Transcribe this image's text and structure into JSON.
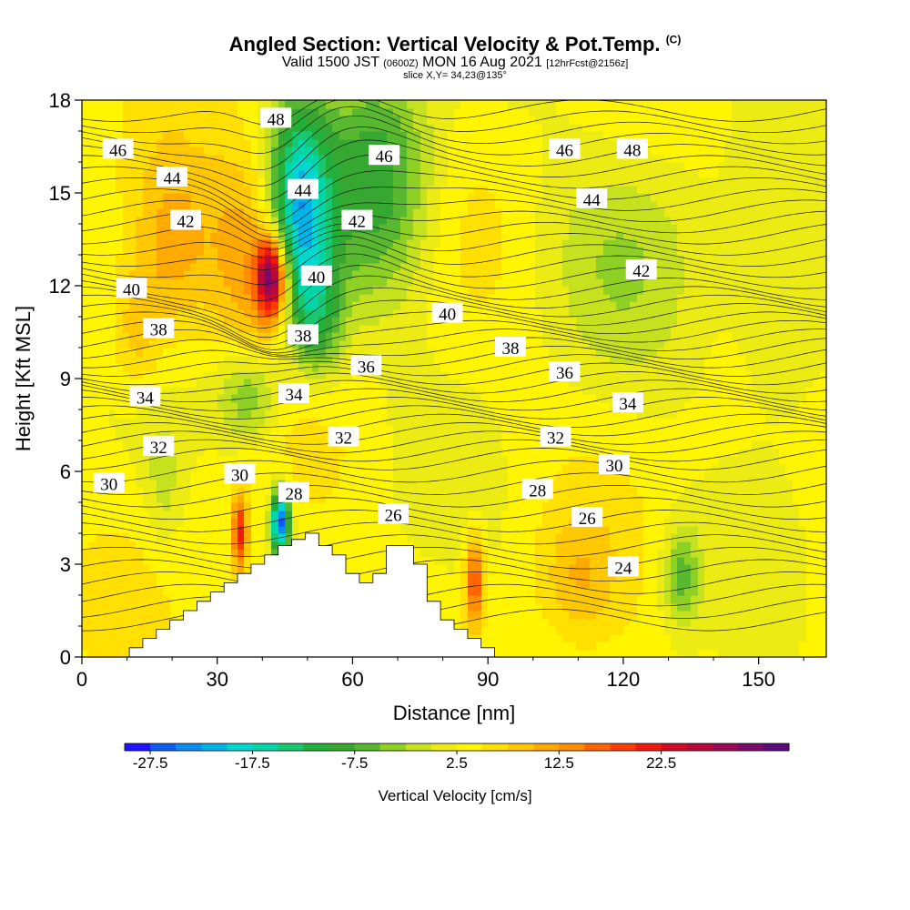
{
  "header": {
    "title": "Angled Section: Vertical Velocity & Pot.Temp.",
    "title_mark": "(C)",
    "valid_a": "Valid 1500 JST",
    "valid_b": "(0600Z)",
    "valid_c": "MON 16 Aug 2021",
    "valid_d": "[12hrFcst@2156z]",
    "slice": "slice X,Y= 34,23@135°"
  },
  "chart_data": {
    "type": "heatmap",
    "xlabel": "Distance [nm]",
    "ylabel": "Height [Kft MSL]",
    "xlim": [
      0,
      165
    ],
    "ylim": [
      0,
      18
    ],
    "x_ticks": [
      0,
      30,
      60,
      90,
      120,
      150
    ],
    "y_ticks": [
      0,
      3,
      6,
      9,
      12,
      15,
      18
    ],
    "x_grid": [
      0,
      3,
      6,
      9,
      12,
      15,
      18,
      21,
      24,
      27,
      30,
      33,
      36,
      39,
      42,
      45,
      48,
      51,
      54,
      57,
      60,
      63,
      66,
      69,
      72,
      75,
      78,
      81,
      84,
      87,
      90,
      93,
      96,
      99,
      102,
      105,
      108,
      111,
      114,
      117,
      120,
      123,
      126,
      129,
      132,
      135,
      138,
      141,
      144,
      147,
      150,
      153,
      156,
      159,
      162,
      165
    ],
    "terrain_height_kft": [
      0,
      0,
      0,
      0,
      0.3,
      0.6,
      0.9,
      1.2,
      1.5,
      1.8,
      2.1,
      2.4,
      2.7,
      3.0,
      3.3,
      3.6,
      3.8,
      4.0,
      3.6,
      3.3,
      2.7,
      2.4,
      2.7,
      3.6,
      3.6,
      3.0,
      1.8,
      1.2,
      0.9,
      0.6,
      0.3,
      0,
      0,
      0,
      0,
      0,
      0,
      0,
      0,
      0,
      0,
      0,
      0,
      0,
      0,
      0,
      0,
      0,
      0,
      0,
      0,
      0,
      0,
      0,
      0,
      0
    ],
    "colorbar": {
      "label": "Vertical Velocity [cm/s]",
      "tick_labels": [
        "-27.5",
        "-17.5",
        "-7.5",
        "2.5",
        "12.5",
        "22.5"
      ],
      "colors": [
        "#1f14ff",
        "#0a5cf5",
        "#0a8cf0",
        "#00b4e8",
        "#00d8d0",
        "#00d6a8",
        "#18c870",
        "#22b03a",
        "#36a832",
        "#58b830",
        "#8ed024",
        "#c6e21e",
        "#ecec14",
        "#fff500",
        "#ffe000",
        "#ffc800",
        "#ffaa00",
        "#ff8e00",
        "#ff6600",
        "#ff3c00",
        "#f01a10",
        "#d20c28",
        "#b8083c",
        "#9c0a56",
        "#7a0a6c",
        "#5a0a7a"
      ]
    },
    "contour_variable": "Pot.Temp. (C)",
    "contour_levels": [
      24,
      26,
      28,
      30,
      32,
      34,
      36,
      38,
      40,
      42,
      44,
      46,
      48
    ],
    "contour_labels": [
      {
        "text": "48",
        "x": 43,
        "y": 17.4
      },
      {
        "text": "46",
        "x": 8,
        "y": 16.4
      },
      {
        "text": "46",
        "x": 67,
        "y": 16.2
      },
      {
        "text": "46",
        "x": 107,
        "y": 16.4
      },
      {
        "text": "48",
        "x": 122,
        "y": 16.4
      },
      {
        "text": "44",
        "x": 20,
        "y": 15.5
      },
      {
        "text": "44",
        "x": 49,
        "y": 15.1
      },
      {
        "text": "44",
        "x": 113,
        "y": 14.8
      },
      {
        "text": "42",
        "x": 23,
        "y": 14.1
      },
      {
        "text": "42",
        "x": 61,
        "y": 14.1
      },
      {
        "text": "42",
        "x": 124,
        "y": 12.5
      },
      {
        "text": "40",
        "x": 11,
        "y": 11.9
      },
      {
        "text": "40",
        "x": 52,
        "y": 12.3
      },
      {
        "text": "40",
        "x": 81,
        "y": 11.1
      },
      {
        "text": "38",
        "x": 17,
        "y": 10.6
      },
      {
        "text": "38",
        "x": 49,
        "y": 10.4
      },
      {
        "text": "38",
        "x": 95,
        "y": 10.0
      },
      {
        "text": "36",
        "x": 63,
        "y": 9.4
      },
      {
        "text": "36",
        "x": 107,
        "y": 9.2
      },
      {
        "text": "34",
        "x": 14,
        "y": 8.4
      },
      {
        "text": "34",
        "x": 47,
        "y": 8.5
      },
      {
        "text": "34",
        "x": 121,
        "y": 8.2
      },
      {
        "text": "32",
        "x": 17,
        "y": 6.8
      },
      {
        "text": "32",
        "x": 58,
        "y": 7.1
      },
      {
        "text": "32",
        "x": 105,
        "y": 7.1
      },
      {
        "text": "30",
        "x": 6,
        "y": 5.6
      },
      {
        "text": "30",
        "x": 35,
        "y": 5.9
      },
      {
        "text": "30",
        "x": 118,
        "y": 6.2
      },
      {
        "text": "28",
        "x": 47,
        "y": 5.3
      },
      {
        "text": "28",
        "x": 101,
        "y": 5.4
      },
      {
        "text": "26",
        "x": 69,
        "y": 4.6
      },
      {
        "text": "26",
        "x": 112,
        "y": 4.5
      },
      {
        "text": "24",
        "x": 120,
        "y": 2.9
      }
    ]
  }
}
